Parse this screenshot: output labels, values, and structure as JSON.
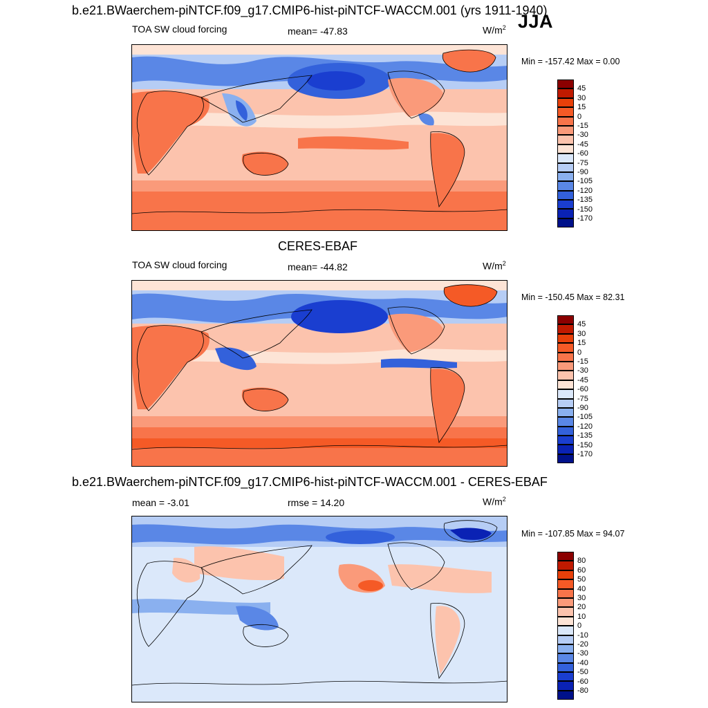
{
  "season": "JJA",
  "units_base": "W/m",
  "units_exp": "2",
  "panel1": {
    "title": "b.e21.BWaerchem-piNTCF.f09_g17.CMIP6-hist-piNTCF-WACCM.001 (yrs 1911-1940)",
    "variable": "TOA SW cloud forcing",
    "stat": "mean= -47.83",
    "minmax": "Min = -157.42 Max =   0.00"
  },
  "panel2": {
    "title": "CERES-EBAF",
    "variable": "TOA SW cloud forcing",
    "stat": "mean= -44.82",
    "minmax": "Min = -150.45 Max =  82.31"
  },
  "panel3": {
    "title": "b.e21.BWaerchem-piNTCF.f09_g17.CMIP6-hist-piNTCF-WACCM.001 - CERES-EBAF",
    "mean": "mean =  -3.01",
    "stat": "rmse =  14.20",
    "minmax": "Min = -107.85 Max =  94.07"
  },
  "colorbar_main": {
    "labels": [
      "45",
      "30",
      "15",
      "0",
      "-15",
      "-30",
      "-45",
      "-60",
      "-75",
      "-90",
      "-105",
      "-120",
      "-135",
      "-150",
      "-170"
    ],
    "colors": [
      "#8b0000",
      "#c01a00",
      "#e8400a",
      "#f55a26",
      "#f8744a",
      "#fa9a7a",
      "#fcc3ad",
      "#fde4d6",
      "#dbe8fa",
      "#b6cdf5",
      "#8ab0ef",
      "#5a87e6",
      "#3361db",
      "#1a3ed0",
      "#0a22b4",
      "#00118a"
    ]
  },
  "colorbar_diff": {
    "labels": [
      "80",
      "60",
      "50",
      "40",
      "30",
      "20",
      "10",
      "0",
      "-10",
      "-20",
      "-30",
      "-40",
      "-50",
      "-60",
      "-80"
    ],
    "colors": [
      "#8b0000",
      "#c01a00",
      "#e8400a",
      "#f55a26",
      "#f8744a",
      "#fa9a7a",
      "#fcc3ad",
      "#fde4d6",
      "#dbe8fa",
      "#b6cdf5",
      "#8ab0ef",
      "#5a87e6",
      "#3361db",
      "#1a3ed0",
      "#0a22b4",
      "#00118a"
    ]
  }
}
